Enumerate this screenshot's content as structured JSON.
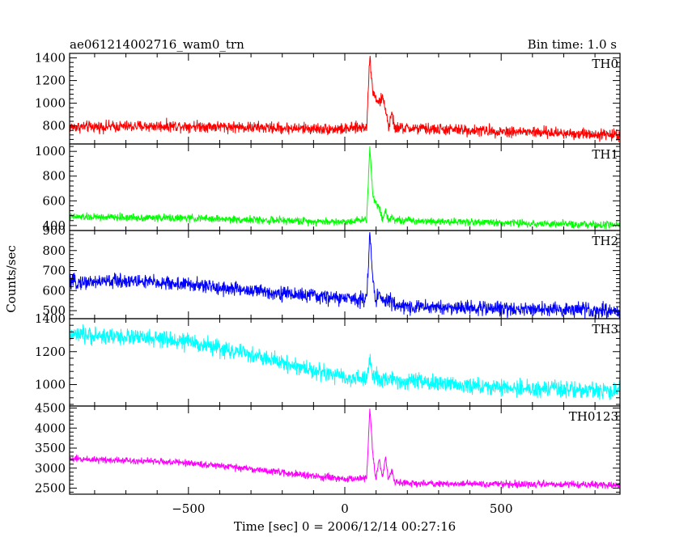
{
  "chart_data": {
    "type": "line",
    "title": "ae061214002716_wam0_trn",
    "subtitle": "Bin time: 1.0 s",
    "xlabel": "Time [sec] 0 = 2006/12/14 00:27:16",
    "ylabel": "Counts/sec",
    "xlim": [
      -880,
      880
    ],
    "xticks": [
      -500,
      0,
      500
    ],
    "grid": false,
    "panels": [
      {
        "name": "TH0",
        "color": "#ff0000",
        "ylim": [
          640,
          1440
        ],
        "yticks": [
          800,
          1000,
          1200,
          1400
        ],
        "noise": 42,
        "peak_time": 80,
        "baseline": {
          "x": [
            -880,
            -500,
            -200,
            0,
            60,
            880
          ],
          "y": [
            790,
            800,
            780,
            770,
            790,
            720
          ]
        },
        "features": [
          {
            "x": 80,
            "y": 1430
          },
          {
            "x": 90,
            "y": 1090
          },
          {
            "x": 100,
            "y": 1050
          },
          {
            "x": 110,
            "y": 1000
          },
          {
            "x": 120,
            "y": 1050
          },
          {
            "x": 130,
            "y": 960
          },
          {
            "x": 150,
            "y": 900
          }
        ]
      },
      {
        "name": "TH1",
        "color": "#00ff00",
        "ylim": [
          360,
          1060
        ],
        "yticks": [
          400,
          600,
          800,
          1000
        ],
        "noise": 25,
        "peak_time": 80,
        "baseline": {
          "x": [
            -880,
            -500,
            -200,
            0,
            60,
            880
          ],
          "y": [
            470,
            460,
            440,
            430,
            450,
            400
          ]
        },
        "features": [
          {
            "x": 80,
            "y": 1050
          },
          {
            "x": 90,
            "y": 630
          },
          {
            "x": 100,
            "y": 580
          },
          {
            "x": 110,
            "y": 560
          },
          {
            "x": 130,
            "y": 520
          },
          {
            "x": 150,
            "y": 480
          }
        ]
      },
      {
        "name": "TH2",
        "color": "#0000ff",
        "ylim": [
          460,
          900
        ],
        "yticks": [
          500,
          600,
          700,
          800,
          900
        ],
        "noise": 30,
        "peak_time": 80,
        "baseline": {
          "x": [
            -880,
            -700,
            -500,
            -300,
            0,
            60,
            200,
            880
          ],
          "y": [
            640,
            650,
            630,
            600,
            560,
            560,
            520,
            500
          ]
        },
        "features": [
          {
            "x": 80,
            "y": 890
          },
          {
            "x": 90,
            "y": 640
          },
          {
            "x": 110,
            "y": 600
          },
          {
            "x": 140,
            "y": 560
          }
        ]
      },
      {
        "name": "TH3",
        "color": "#00ffff",
        "ylim": [
          870,
          1400
        ],
        "yticks": [
          1000,
          1200,
          1400
        ],
        "noise": 42,
        "peak_time": 80,
        "baseline": {
          "x": [
            -880,
            -700,
            -500,
            -300,
            0,
            200,
            500,
            880
          ],
          "y": [
            1300,
            1290,
            1260,
            1180,
            1040,
            1020,
            980,
            960
          ]
        },
        "features": [
          {
            "x": 80,
            "y": 1150
          },
          {
            "x": 100,
            "y": 1080
          }
        ]
      },
      {
        "name": "TH0123",
        "color": "#ff00ff",
        "ylim": [
          2350,
          4550
        ],
        "yticks": [
          2500,
          3000,
          3500,
          4000,
          4500
        ],
        "noise": 70,
        "peak_time": 80,
        "baseline": {
          "x": [
            -880,
            -700,
            -500,
            -300,
            -100,
            0,
            60,
            200,
            880
          ],
          "y": [
            3230,
            3200,
            3130,
            2980,
            2800,
            2720,
            2760,
            2620,
            2580
          ]
        },
        "features": [
          {
            "x": 80,
            "y": 4500
          },
          {
            "x": 90,
            "y": 3300
          },
          {
            "x": 110,
            "y": 3250
          },
          {
            "x": 130,
            "y": 3300
          },
          {
            "x": 150,
            "y": 2950
          }
        ]
      }
    ]
  }
}
